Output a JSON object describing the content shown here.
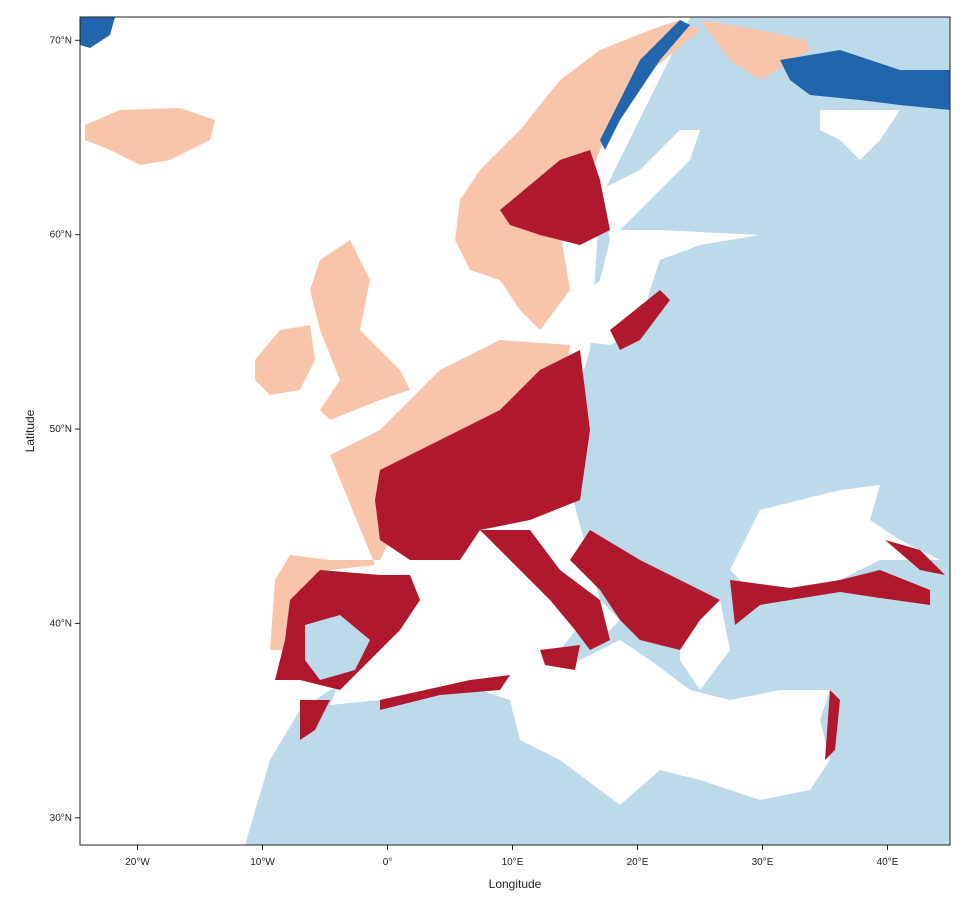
{
  "chart_data": {
    "type": "map",
    "x_label": "Longitude",
    "y_label": "Latitude",
    "xlim": [
      -24.6,
      45
    ],
    "ylim": [
      28.6,
      71.2
    ],
    "xticks": [
      {
        "value": -20,
        "label": "20°W"
      },
      {
        "value": -10,
        "label": "10°W"
      },
      {
        "value": 0,
        "label": "0°"
      },
      {
        "value": 10,
        "label": "10°E"
      },
      {
        "value": 20,
        "label": "20°E"
      },
      {
        "value": 30,
        "label": "30°E"
      },
      {
        "value": 40,
        "label": "40°E"
      }
    ],
    "yticks": [
      {
        "value": 30,
        "label": "30°N"
      },
      {
        "value": 40,
        "label": "40°N"
      },
      {
        "value": 50,
        "label": "50°N"
      },
      {
        "value": 60,
        "label": "60°N"
      },
      {
        "value": 70,
        "label": "70°N"
      }
    ]
  }
}
